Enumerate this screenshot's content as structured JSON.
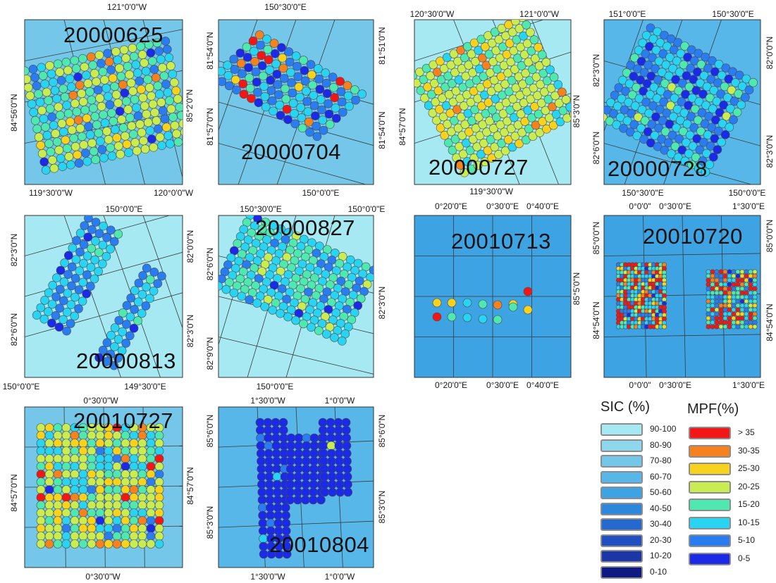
{
  "colors": {
    "sic": {
      "90-100": "#a6e9f2",
      "80-90": "#8fd8ec",
      "70-80": "#74c7e8",
      "60-70": "#57b7e8",
      "50-60": "#3ea3e2",
      "40-50": "#2d88db",
      "30-40": "#2569cf",
      "20-30": "#1f4fc0",
      "10-20": "#1a36a7",
      "0-10": "#0e1a82"
    },
    "mpf": {
      ">35": "#f21616",
      "30-35": "#f5821e",
      "25-30": "#f8d21c",
      "20-25": "#c8ec52",
      "15-20": "#4fe8b0",
      "10-15": "#29d3f2",
      "5-10": "#2a7df0",
      "0-5": "#1a2ae6"
    }
  },
  "panels": [
    {
      "name": "panel-20000625",
      "date": "20000625",
      "background": "70-80",
      "top_ticks": [
        "121°0'0\"W"
      ],
      "bottom_ticks": [
        "119°30'0\"W",
        "120°0'0\"W"
      ],
      "left_ticks": [
        "84°56'0\"N"
      ],
      "right_ticks": [
        "85°2'0\"N"
      ],
      "ponds": [
        {
          "class": "20-25",
          "count": 160
        },
        {
          "class": "15-20",
          "count": 120
        },
        {
          "class": "10-15",
          "count": 100
        },
        {
          "class": "5-10",
          "count": 45
        },
        {
          "class": "25-30",
          "count": 25
        },
        {
          "class": "30-35",
          "count": 15
        },
        {
          "class": "0-5",
          "count": 10
        }
      ]
    },
    {
      "name": "panel-20000704",
      "date": "20000704",
      "background": "70-80",
      "top_ticks": [
        "150°30'0\"E"
      ],
      "bottom_ticks": [
        "150°0'0\"E"
      ],
      "left_ticks": [
        "81°54'0\"N",
        "81°57'0\"N"
      ],
      "right_ticks": [
        "81°51'0\"N",
        "81°54'0\"N"
      ],
      "ponds": [
        {
          "class": "5-10",
          "count": 70
        },
        {
          "class": "10-15",
          "count": 45
        },
        {
          "class": "0-5",
          "count": 25
        },
        {
          "class": "15-20",
          "count": 20
        },
        {
          "class": ">35",
          "count": 12
        },
        {
          "class": "30-35",
          "count": 10
        },
        {
          "class": "25-30",
          "count": 6
        }
      ]
    },
    {
      "name": "panel-20000727",
      "date": "20000727",
      "background": "90-100",
      "top_ticks": [
        "120°30'0\"W",
        "121°0'0\"W"
      ],
      "bottom_ticks": [
        "119°30'0\"W"
      ],
      "left_ticks": [
        "84°57'0\"N"
      ],
      "right_ticks": [
        "85°3'0\"N"
      ],
      "ponds": [
        {
          "class": "20-25",
          "count": 210
        },
        {
          "class": "15-20",
          "count": 80
        },
        {
          "class": "25-30",
          "count": 45
        },
        {
          "class": "10-15",
          "count": 30
        },
        {
          "class": "30-35",
          "count": 12
        }
      ]
    },
    {
      "name": "panel-20000728",
      "date": "20000728",
      "background": "60-70",
      "top_ticks": [
        "151°0'0\"E",
        "150°30'0\"E"
      ],
      "bottom_ticks": [
        "150°30'0\"E",
        "150°0'0\"E"
      ],
      "left_ticks": [
        "82°3'0\"N",
        "82°6'0\"N"
      ],
      "right_ticks": [
        "82°0'0\"N",
        "82°3'0\"N"
      ],
      "ponds": [
        {
          "class": "10-15",
          "count": 140
        },
        {
          "class": "5-10",
          "count": 110
        },
        {
          "class": "0-5",
          "count": 40
        },
        {
          "class": "15-20",
          "count": 40
        },
        {
          "class": "20-25",
          "count": 10
        }
      ]
    },
    {
      "name": "panel-20000813",
      "date": "20000813",
      "background": "90-100",
      "top_ticks": [
        "150°0'0\"E"
      ],
      "bottom_ticks": [
        "150°0'0\"E",
        "149°30'0\"E"
      ],
      "left_ticks": [
        "82°3'0\"N",
        "82°6'0\"N"
      ],
      "right_ticks": [
        "82°0'0\"N",
        "82°3'0\"N"
      ],
      "ponds": [
        {
          "class": "5-10",
          "count": 120
        },
        {
          "class": "10-15",
          "count": 90
        },
        {
          "class": "0-5",
          "count": 20
        },
        {
          "class": "15-20",
          "count": 12
        }
      ]
    },
    {
      "name": "panel-20000827",
      "date": "20000827",
      "background": "90-100",
      "top_ticks": [
        "150°30'0\"E",
        "150°0'0\"E"
      ],
      "bottom_ticks": [
        "150°0'0\"E"
      ],
      "left_ticks": [
        "82°6'0\"N",
        "82°9'0\"N"
      ],
      "right_ticks": [
        "82°3'0\"N"
      ],
      "ponds": [
        {
          "class": "10-15",
          "count": 150
        },
        {
          "class": "15-20",
          "count": 80
        },
        {
          "class": "5-10",
          "count": 40
        },
        {
          "class": "20-25",
          "count": 15
        },
        {
          "class": "0-5",
          "count": 8
        }
      ]
    },
    {
      "name": "panel-20010713",
      "date": "20010713",
      "background": "50-60",
      "top_ticks": [
        "0°20'0\"E",
        "0°30'0\"E",
        "0°40'0\"E"
      ],
      "bottom_ticks": [
        "0°20'0\"E",
        "0°30'0\"E",
        "0°40'0\"E"
      ],
      "left_ticks": [],
      "right_ticks": [
        "85°5'0\"N"
      ],
      "ponds": [
        {
          "class": "15-20",
          "count": 4
        },
        {
          "class": "10-15",
          "count": 3
        },
        {
          "class": "25-30",
          "count": 5
        },
        {
          "class": "30-35",
          "count": 1
        },
        {
          "class": ">35",
          "count": 2
        }
      ]
    },
    {
      "name": "panel-20010720",
      "date": "20010720",
      "background": "50-60",
      "top_ticks": [
        "0°0'0\"",
        "0°30'0\"E",
        "1°30'0\"E"
      ],
      "bottom_ticks": [
        "0°0'0\"",
        "0°30'0\"E",
        "1°30'0\"E"
      ],
      "left_ticks": [
        "85°0'0\"N",
        "84°54'0\"N"
      ],
      "right_ticks": [
        "85°0'0\"N",
        "84°54'0\"N"
      ],
      "ponds": [
        {
          "class": ">35",
          "count": 120
        },
        {
          "class": "10-15",
          "count": 110
        },
        {
          "class": "5-10",
          "count": 80
        },
        {
          "class": "15-20",
          "count": 70
        },
        {
          "class": "25-30",
          "count": 40
        },
        {
          "class": "30-35",
          "count": 35
        },
        {
          "class": "20-25",
          "count": 30
        },
        {
          "class": "0-5",
          "count": 15
        }
      ]
    },
    {
      "name": "panel-20010727",
      "date": "20010727",
      "background": "70-80",
      "top_ticks": [
        "0°30'0\"W"
      ],
      "bottom_ticks": [
        "0°30'0\"W"
      ],
      "left_ticks": [
        "84°57'0\"N"
      ],
      "right_ticks": [
        "84°57'0\"N"
      ],
      "ponds": [
        {
          "class": "20-25",
          "count": 110
        },
        {
          "class": "15-20",
          "count": 50
        },
        {
          "class": "10-15",
          "count": 40
        },
        {
          "class": "25-30",
          "count": 40
        },
        {
          "class": "30-35",
          "count": 15
        },
        {
          "class": ">35",
          "count": 10
        },
        {
          "class": "5-10",
          "count": 10
        },
        {
          "class": "0-5",
          "count": 4
        }
      ]
    },
    {
      "name": "panel-20010804",
      "date": "20010804",
      "background": "60-70",
      "top_ticks": [
        "1°30'0\"W",
        "1°0'0\"W"
      ],
      "bottom_ticks": [
        "1°30'0\"W",
        "1°0'0\"W"
      ],
      "left_ticks": [
        "85°6'0\"N",
        "85°3'0\"N"
      ],
      "right_ticks": [
        "85°6'0\"N",
        "85°3'0\"N"
      ],
      "ponds": [
        {
          "class": "0-5",
          "count": 140
        },
        {
          "class": "5-10",
          "count": 6
        },
        {
          "class": "10-15",
          "count": 2
        },
        {
          "class": "20-25",
          "count": 1
        }
      ]
    }
  ],
  "legend": {
    "sic_title": "SIC (%)",
    "mpf_title": "MPF(%)",
    "sic_items": [
      "90-100",
      "80-90",
      "70-80",
      "60-70",
      "50-60",
      "40-50",
      "30-40",
      "20-30",
      "10-20",
      "0-10"
    ],
    "mpf_items": [
      "> 35",
      "30-35",
      "25-30",
      "20-25",
      "15-20",
      "10-15",
      "5-10",
      "0-5"
    ]
  }
}
